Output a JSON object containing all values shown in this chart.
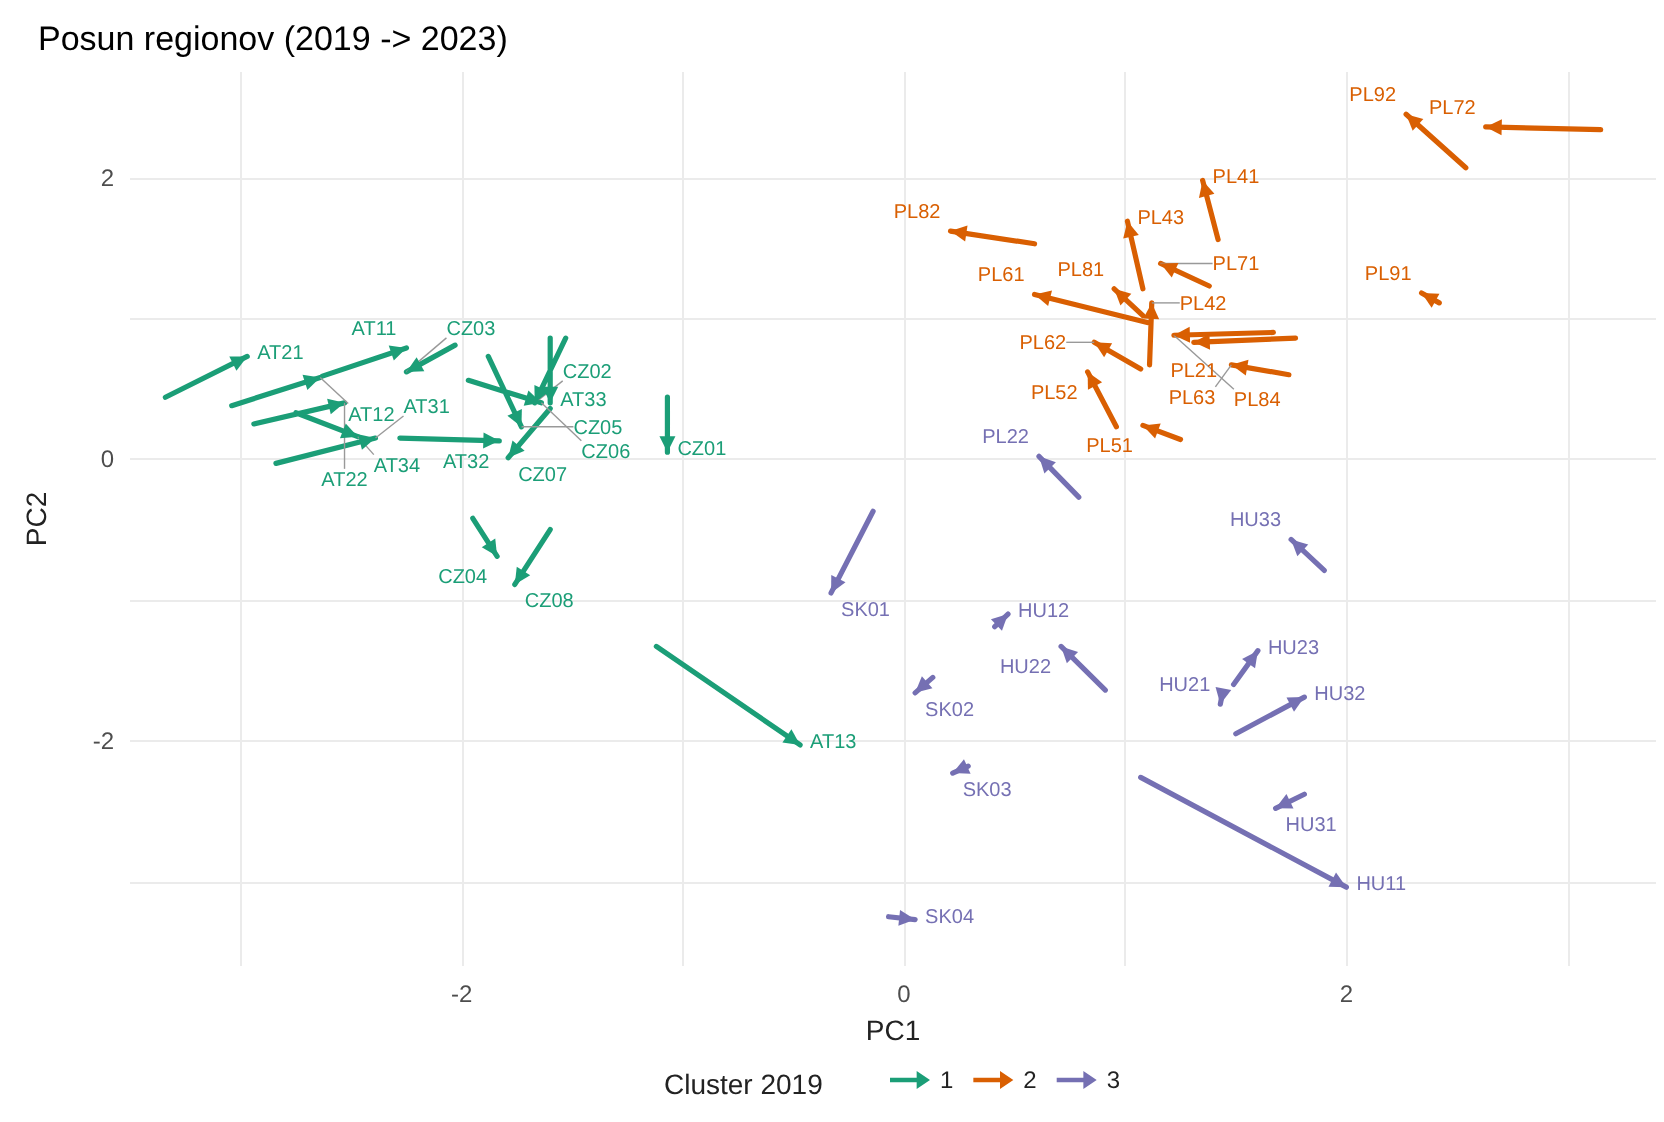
{
  "chart_data": {
    "type": "line",
    "title": "Posun regionov (2019 -> 2023)",
    "xlabel": "PC1",
    "ylabel": "PC2",
    "legend_title": "Cluster 2019",
    "legend": "bottom",
    "grid": true,
    "xlim": [
      -3.5,
      3.4
    ],
    "xticks": [
      {
        "value": -3,
        "label": null
      },
      -2,
      {
        "value": -1,
        "label": null
      },
      0,
      {
        "value": 1,
        "label": null
      },
      2,
      {
        "value": 3,
        "label": null
      }
    ],
    "ylim": [
      -3.6,
      2.75
    ],
    "yticks": [
      {
        "value": -3,
        "label": null
      },
      -2,
      {
        "value": -1,
        "label": null
      },
      0,
      {
        "value": 1,
        "label": null
      },
      2
    ],
    "series": [
      {
        "name": "1",
        "color": "#1b9e77",
        "x": [
          -3.34,
          -2.97,
          null,
          -3.04,
          -2.64,
          null,
          -2.63,
          -2.25,
          null,
          -2.94,
          -2.53,
          null,
          -2.75,
          -2.47,
          null,
          -2.84,
          -2.39,
          null,
          -2.28,
          -1.83,
          null,
          -2.03,
          -2.25,
          null,
          -1.6,
          -1.79,
          null,
          -1.88,
          -1.73,
          null,
          -1.53,
          -1.67,
          null,
          -1.6,
          -1.6,
          null,
          -1.97,
          -1.64,
          null,
          -1.07,
          -1.07,
          null,
          -1.95,
          -1.84,
          null,
          -1.6,
          -1.76,
          null,
          -1.12,
          -0.47
        ],
        "values": [
          0.44,
          0.73,
          null,
          0.38,
          0.58,
          null,
          0.59,
          0.79,
          null,
          0.25,
          0.4,
          null,
          0.33,
          0.16,
          null,
          -0.03,
          0.15,
          null,
          0.15,
          0.13,
          null,
          0.81,
          0.62,
          null,
          0.36,
          0.01,
          null,
          0.73,
          0.23,
          null,
          0.86,
          0.4,
          null,
          0.86,
          0.4,
          null,
          0.56,
          0.4,
          null,
          0.44,
          0.05,
          null,
          -0.42,
          -0.69,
          null,
          -0.5,
          -0.89,
          null,
          -1.33,
          -2.03
        ]
      },
      {
        "name": "2",
        "color": "#d95f02",
        "x": [
          2.54,
          2.27,
          null,
          3.15,
          2.63,
          null,
          1.42,
          1.35,
          null,
          1.08,
          1.01,
          null,
          0.59,
          0.21,
          null,
          1.38,
          1.16,
          null,
          1.08,
          0.95,
          null,
          1.1,
          0.59,
          null,
          1.11,
          1.12,
          null,
          1.77,
          1.31,
          null,
          1.67,
          1.22,
          null,
          1.07,
          0.86,
          null,
          0.96,
          0.83,
          null,
          1.74,
          1.48,
          null,
          1.25,
          1.08,
          null,
          2.42,
          2.34
        ],
        "values": [
          2.07,
          2.45,
          null,
          2.34,
          2.36,
          null,
          1.56,
          1.98,
          null,
          1.21,
          1.69,
          null,
          1.53,
          1.62,
          null,
          1.23,
          1.39,
          null,
          1.02,
          1.21,
          null,
          0.97,
          1.17,
          null,
          0.67,
          1.11,
          null,
          0.86,
          0.83,
          null,
          0.9,
          0.88,
          null,
          0.64,
          0.83,
          null,
          0.23,
          0.62,
          null,
          0.6,
          0.67,
          null,
          0.14,
          0.24,
          null,
          1.11,
          1.18
        ]
      },
      {
        "name": "3",
        "color": "#7570b3",
        "x": [
          0.79,
          0.61,
          null,
          -0.14,
          -0.33,
          null,
          0.41,
          0.47,
          null,
          0.13,
          0.05,
          null,
          0.91,
          0.71,
          null,
          0.29,
          0.22,
          null,
          -0.07,
          0.05,
          null,
          1.9,
          1.75,
          null,
          1.49,
          1.6,
          null,
          1.44,
          1.43,
          null,
          1.5,
          1.81,
          null,
          1.81,
          1.68,
          null,
          1.07,
          2.0
        ],
        "values": [
          -0.27,
          0.02,
          null,
          -0.37,
          -0.95,
          null,
          -1.19,
          -1.1,
          null,
          -1.55,
          -1.66,
          null,
          -1.64,
          -1.33,
          null,
          -2.18,
          -2.23,
          null,
          -3.25,
          -3.27,
          null,
          -0.79,
          -0.57,
          null,
          -1.6,
          -1.36,
          null,
          -1.66,
          -1.74,
          null,
          -1.95,
          -1.69,
          null,
          -2.38,
          -2.48,
          null,
          -2.26,
          -3.04
        ]
      }
    ],
    "annotations": [
      {
        "text": "AT21",
        "x": -2.97,
        "y": 0.73
      },
      {
        "text": "AT12",
        "x": -2.64,
        "y": 0.58
      },
      {
        "text": "AT11",
        "x": -2.25,
        "y": 0.79
      },
      {
        "text": "AT22",
        "x": -2.53,
        "y": 0.4
      },
      {
        "text": "AT34",
        "x": -2.47,
        "y": 0.16
      },
      {
        "text": "AT31",
        "x": -2.39,
        "y": 0.15
      },
      {
        "text": "AT32",
        "x": -1.83,
        "y": 0.13
      },
      {
        "text": "CZ03",
        "x": -2.25,
        "y": 0.62
      },
      {
        "text": "CZ07",
        "x": -1.79,
        "y": 0.01
      },
      {
        "text": "CZ05",
        "x": -1.73,
        "y": 0.23
      },
      {
        "text": "CZ02",
        "x": -1.67,
        "y": 0.4
      },
      {
        "text": "AT33",
        "x": -1.6,
        "y": 0.4
      },
      {
        "text": "CZ06",
        "x": -1.64,
        "y": 0.4
      },
      {
        "text": "CZ01",
        "x": -1.07,
        "y": 0.05
      },
      {
        "text": "CZ04",
        "x": -1.84,
        "y": -0.69
      },
      {
        "text": "CZ08",
        "x": -1.76,
        "y": -0.89
      },
      {
        "text": "AT13",
        "x": -0.47,
        "y": -2.03
      },
      {
        "text": "PL92",
        "x": 2.27,
        "y": 2.45
      },
      {
        "text": "PL72",
        "x": 2.63,
        "y": 2.36
      },
      {
        "text": "PL41",
        "x": 1.35,
        "y": 1.98
      },
      {
        "text": "PL43",
        "x": 1.01,
        "y": 1.69
      },
      {
        "text": "PL82",
        "x": 0.21,
        "y": 1.62
      },
      {
        "text": "PL71",
        "x": 1.16,
        "y": 1.39
      },
      {
        "text": "PL81",
        "x": 0.95,
        "y": 1.21
      },
      {
        "text": "PL61",
        "x": 0.59,
        "y": 1.17
      },
      {
        "text": "PL42",
        "x": 1.12,
        "y": 1.11
      },
      {
        "text": "PL21",
        "x": 1.31,
        "y": 0.83
      },
      {
        "text": "PL84",
        "x": 1.22,
        "y": 0.88
      },
      {
        "text": "PL62",
        "x": 0.86,
        "y": 0.83
      },
      {
        "text": "PL52",
        "x": 0.83,
        "y": 0.62
      },
      {
        "text": "PL63",
        "x": 1.48,
        "y": 0.67
      },
      {
        "text": "PL51",
        "x": 1.08,
        "y": 0.24
      },
      {
        "text": "PL91",
        "x": 2.34,
        "y": 1.18
      },
      {
        "text": "PL22",
        "x": 0.61,
        "y": 0.02
      },
      {
        "text": "SK01",
        "x": -0.33,
        "y": -0.95
      },
      {
        "text": "HU12",
        "x": 0.47,
        "y": -1.1
      },
      {
        "text": "SK02",
        "x": 0.05,
        "y": -1.66
      },
      {
        "text": "HU22",
        "x": 0.71,
        "y": -1.33
      },
      {
        "text": "SK03",
        "x": 0.22,
        "y": -2.23
      },
      {
        "text": "SK04",
        "x": 0.05,
        "y": -3.27
      },
      {
        "text": "HU33",
        "x": 1.75,
        "y": -0.57
      },
      {
        "text": "HU23",
        "x": 1.6,
        "y": -1.36
      },
      {
        "text": "HU21",
        "x": 1.43,
        "y": -1.74
      },
      {
        "text": "HU32",
        "x": 1.81,
        "y": -1.69
      },
      {
        "text": "HU31",
        "x": 1.68,
        "y": -2.48
      },
      {
        "text": "HU11",
        "x": 2.0,
        "y": -3.04
      }
    ]
  }
}
